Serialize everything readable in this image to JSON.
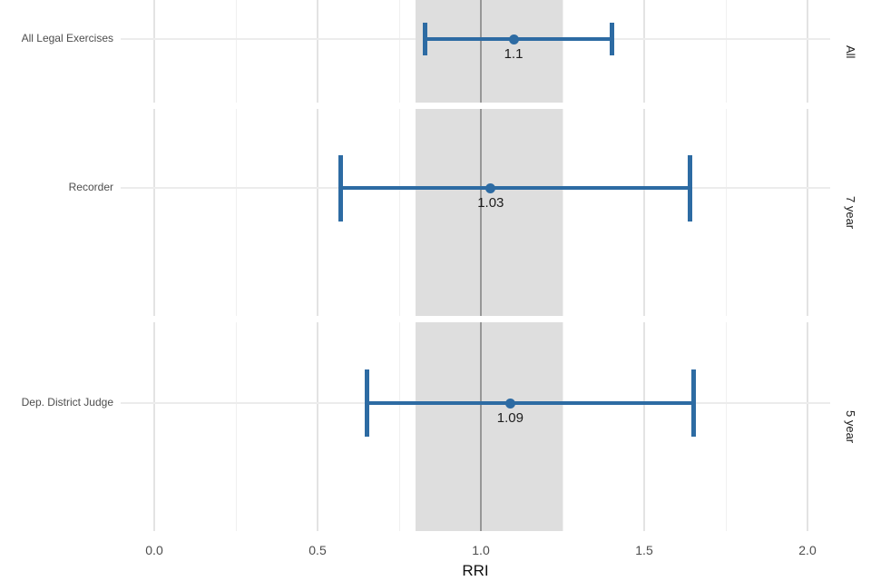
{
  "chart_data": {
    "type": "scatter",
    "subtype": "forest-errorbar",
    "title": "",
    "xlabel": "RRI",
    "ylabel": "",
    "xlim": [
      0.0,
      2.0
    ],
    "x_ticks": [
      0.0,
      0.5,
      1.0,
      1.5,
      2.0
    ],
    "x_tick_labels": [
      "0.0",
      "0.5",
      "1.0",
      "1.5",
      "2.0"
    ],
    "x_minor_step": 0.25,
    "grid": true,
    "reference_line_x": 1.0,
    "reference_band_x": [
      0.8,
      1.25
    ],
    "facets": [
      {
        "strip": "All",
        "category": "All Legal Exercises",
        "estimate": 1.1,
        "ci_low": 0.83,
        "ci_high": 1.4,
        "value_label": "1.1"
      },
      {
        "strip": "7 year",
        "category": "Recorder",
        "estimate": 1.03,
        "ci_low": 0.57,
        "ci_high": 1.64,
        "value_label": "1.03"
      },
      {
        "strip": "5 year",
        "category": "Dep. District Judge",
        "estimate": 1.09,
        "ci_low": 0.65,
        "ci_high": 1.65,
        "value_label": "1.09"
      }
    ],
    "colors": {
      "series": "#2d6ba3",
      "reference_band": "#dedede",
      "reference_line": "#979797",
      "grid_major": "#e3e3e3",
      "grid_minor": "#f0f0f0",
      "axis_text": "#4d4d4d",
      "value_text": "#1c1c1c"
    }
  }
}
